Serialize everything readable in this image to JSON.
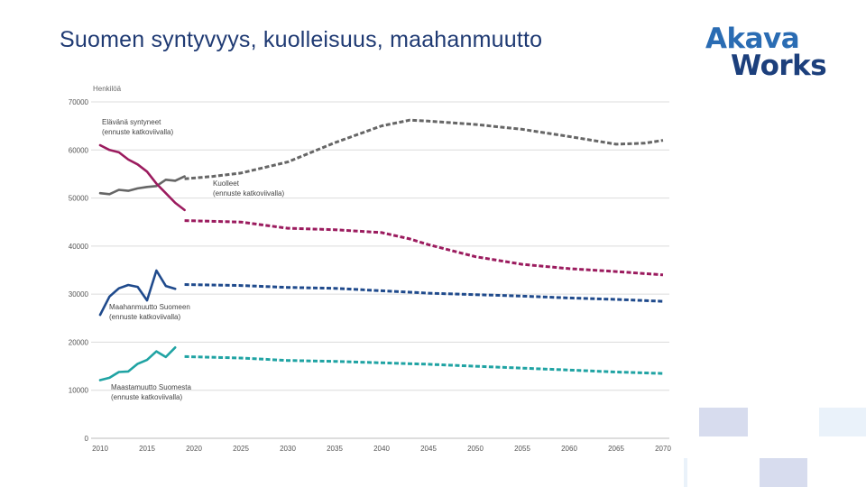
{
  "header": {
    "title": "Suomen syntyvyys, kuolleisuus, maahanmuutto"
  },
  "logo": {
    "line1": "Akava",
    "line2": "Works",
    "alt": "Akava Works"
  },
  "colors": {
    "births": "#666666",
    "deaths": "#9b1b5e",
    "immigration": "#1f4a8c",
    "emigration": "#1fa3a3",
    "title": "#1f3a73",
    "deco_light": "#d7dcee",
    "deco_lighter": "#eaf2fa"
  },
  "chart_data": {
    "type": "line",
    "ylabel": "Henkilöä",
    "ylim": [
      0,
      70000
    ],
    "yticks": [
      "0",
      "10000",
      "20000",
      "30000",
      "40000",
      "50000",
      "60000",
      "70000"
    ],
    "xlim": [
      2010,
      2070
    ],
    "xticks": [
      "2010",
      "2015",
      "2020",
      "2025",
      "2030",
      "2035",
      "2040",
      "2045",
      "2050",
      "2055",
      "2060",
      "2065",
      "2070"
    ],
    "grid": "horizontal",
    "series": [
      {
        "key": "births",
        "name": "Elävänä syntyneet (ennuste katkoviivalla)",
        "label_lines": [
          "Elävänä syntyneet",
          "(ennuste katkoviivalla)"
        ],
        "color": "#666666",
        "observed": [
          [
            2010,
            51000
          ],
          [
            2011,
            50800
          ],
          [
            2012,
            51700
          ],
          [
            2013,
            51500
          ],
          [
            2014,
            52000
          ],
          [
            2015,
            52300
          ],
          [
            2016,
            52500
          ],
          [
            2017,
            53800
          ],
          [
            2018,
            53600
          ],
          [
            2019,
            54500
          ]
        ],
        "forecast": [
          [
            2019,
            54000
          ],
          [
            2022,
            54500
          ],
          [
            2025,
            55200
          ],
          [
            2030,
            57500
          ],
          [
            2035,
            61500
          ],
          [
            2040,
            65000
          ],
          [
            2043,
            66200
          ],
          [
            2045,
            66000
          ],
          [
            2050,
            65300
          ],
          [
            2055,
            64300
          ],
          [
            2060,
            62800
          ],
          [
            2065,
            61200
          ],
          [
            2068,
            61400
          ],
          [
            2070,
            62000
          ]
        ]
      },
      {
        "key": "deaths",
        "name": "Kuolleet (ennuste katkoviivalla)",
        "label_lines": [
          "Kuolleet",
          "(ennuste katkoviivalla)"
        ],
        "color": "#9b1b5e",
        "observed": [
          [
            2010,
            61000
          ],
          [
            2011,
            60000
          ],
          [
            2012,
            59500
          ],
          [
            2013,
            58000
          ],
          [
            2014,
            57000
          ],
          [
            2015,
            55500
          ],
          [
            2016,
            53000
          ],
          [
            2017,
            51000
          ],
          [
            2018,
            49000
          ],
          [
            2019,
            47500
          ]
        ],
        "forecast": [
          [
            2019,
            45300
          ],
          [
            2025,
            45000
          ],
          [
            2030,
            43700
          ],
          [
            2035,
            43400
          ],
          [
            2040,
            42800
          ],
          [
            2043,
            41500
          ],
          [
            2045,
            40300
          ],
          [
            2050,
            37800
          ],
          [
            2055,
            36200
          ],
          [
            2060,
            35300
          ],
          [
            2065,
            34700
          ],
          [
            2070,
            34000
          ]
        ]
      },
      {
        "key": "immigration",
        "name": "Maahanmuutto Suomeen (ennuste katkoviivalla)",
        "label_lines": [
          "Maahanmuutto Suomeen",
          "(ennuste katkoviivalla)"
        ],
        "color": "#1f4a8c",
        "observed": [
          [
            2010,
            25700
          ],
          [
            2011,
            29500
          ],
          [
            2012,
            31200
          ],
          [
            2013,
            31900
          ],
          [
            2014,
            31500
          ],
          [
            2015,
            28700
          ],
          [
            2016,
            34900
          ],
          [
            2017,
            31700
          ],
          [
            2018,
            31100
          ]
        ],
        "forecast": [
          [
            2019,
            32000
          ],
          [
            2025,
            31800
          ],
          [
            2030,
            31400
          ],
          [
            2035,
            31200
          ],
          [
            2040,
            30700
          ],
          [
            2045,
            30200
          ],
          [
            2050,
            29900
          ],
          [
            2055,
            29600
          ],
          [
            2060,
            29200
          ],
          [
            2065,
            28900
          ],
          [
            2070,
            28500
          ]
        ]
      },
      {
        "key": "emigration",
        "name": "Maastamuutto Suomesta (ennuste katkoviivalla)",
        "label_lines": [
          "Maastamuutto Suomesta",
          "(ennuste katkoviivalla)"
        ],
        "color": "#1fa3a3",
        "observed": [
          [
            2010,
            12100
          ],
          [
            2011,
            12600
          ],
          [
            2012,
            13800
          ],
          [
            2013,
            13900
          ],
          [
            2014,
            15500
          ],
          [
            2015,
            16300
          ],
          [
            2016,
            18100
          ],
          [
            2017,
            16900
          ],
          [
            2018,
            18900
          ]
        ],
        "forecast": [
          [
            2019,
            17000
          ],
          [
            2025,
            16700
          ],
          [
            2030,
            16200
          ],
          [
            2035,
            16000
          ],
          [
            2040,
            15700
          ],
          [
            2045,
            15400
          ],
          [
            2050,
            15000
          ],
          [
            2055,
            14600
          ],
          [
            2060,
            14200
          ],
          [
            2065,
            13800
          ],
          [
            2070,
            13500
          ]
        ]
      }
    ]
  }
}
